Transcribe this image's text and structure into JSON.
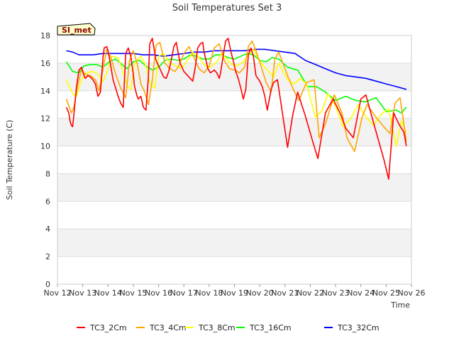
{
  "chart_data": {
    "type": "line",
    "title": "Soil Temperatures Set 3",
    "xlabel": "Time",
    "ylabel": "Soil Temperature (C)",
    "site_label": "SI_met",
    "xlim": [
      11.0,
      25.0
    ],
    "ylim": [
      0,
      18
    ],
    "x_units": "days since Nov 1 (Nov 12 = 11)",
    "x_ticks": [
      {
        "value": 11,
        "label": "Nov 12"
      },
      {
        "value": 12,
        "label": "Nov 13"
      },
      {
        "value": 13,
        "label": "Nov 14"
      },
      {
        "value": 14,
        "label": "Nov 15"
      },
      {
        "value": 15,
        "label": "Nov 16"
      },
      {
        "value": 16,
        "label": "Nov 17"
      },
      {
        "value": 17,
        "label": "Nov 18"
      },
      {
        "value": 18,
        "label": "Nov 19"
      },
      {
        "value": 19,
        "label": "Nov 20"
      },
      {
        "value": 20,
        "label": "Nov 21"
      },
      {
        "value": 21,
        "label": "Nov 22"
      },
      {
        "value": 22,
        "label": "Nov 23"
      },
      {
        "value": 23,
        "label": "Nov 24"
      },
      {
        "value": 24,
        "label": "Nov 25"
      },
      {
        "value": 25,
        "label": "Nov 26"
      }
    ],
    "y_ticks": [
      0,
      2,
      4,
      6,
      8,
      10,
      12,
      14,
      16,
      18
    ],
    "band_color": "#f2f2f2",
    "series": [
      {
        "name": "TC3_2Cm",
        "color": "#ff0000",
        "x": [
          11.35,
          11.45,
          11.5,
          11.55,
          11.6,
          11.65,
          11.75,
          11.85,
          11.95,
          12.05,
          12.1,
          12.2,
          12.3,
          12.4,
          12.5,
          12.6,
          12.7,
          12.8,
          12.85,
          12.95,
          13.0,
          13.1,
          13.2,
          13.3,
          13.4,
          13.5,
          13.6,
          13.7,
          13.8,
          13.9,
          14.0,
          14.05,
          14.15,
          14.2,
          14.3,
          14.4,
          14.5,
          14.6,
          14.65,
          14.75,
          14.9,
          15.05,
          15.2,
          15.3,
          15.4,
          15.5,
          15.6,
          15.7,
          15.75,
          15.85,
          16.0,
          16.15,
          16.25,
          16.35,
          16.45,
          16.55,
          16.65,
          16.75,
          16.8,
          16.95,
          17.05,
          17.2,
          17.3,
          17.4,
          17.45,
          17.55,
          17.65,
          17.75,
          17.85,
          17.95,
          18.05,
          18.15,
          18.25,
          18.35,
          18.45,
          18.55,
          18.65,
          18.75,
          18.85,
          19.0,
          19.1,
          19.2,
          19.3,
          19.45,
          19.55,
          19.7,
          20.1,
          20.3,
          20.5,
          20.8,
          21.1,
          21.3,
          21.6,
          21.9,
          22.2,
          22.4,
          22.7,
          23.0,
          23.2,
          23.5,
          23.9,
          24.1,
          24.3,
          24.5,
          24.7,
          24.8
        ],
        "values": [
          12.8,
          12.4,
          11.8,
          11.5,
          11.4,
          12.3,
          14.2,
          15.5,
          15.7,
          15.1,
          14.9,
          15.1,
          15.0,
          14.8,
          14.5,
          13.6,
          13.9,
          16.4,
          17.1,
          17.2,
          16.9,
          15.9,
          14.8,
          14.2,
          13.6,
          13.1,
          12.8,
          16.7,
          17.1,
          16.5,
          15.2,
          14.3,
          13.6,
          13.4,
          13.6,
          12.8,
          12.6,
          15.1,
          17.4,
          17.8,
          16.2,
          15.6,
          15.0,
          14.9,
          15.4,
          16.2,
          17.2,
          17.5,
          17.0,
          16.0,
          15.4,
          15.1,
          14.9,
          14.7,
          15.7,
          17.1,
          17.4,
          17.5,
          16.8,
          15.6,
          15.3,
          15.5,
          15.3,
          14.9,
          15.3,
          16.5,
          17.6,
          17.8,
          16.9,
          16.2,
          15.4,
          14.9,
          14.2,
          13.4,
          14.1,
          16.6,
          17.1,
          16.5,
          15.1,
          14.7,
          14.3,
          13.6,
          12.6,
          14.1,
          14.6,
          14.8,
          9.9,
          12.2,
          13.9,
          12.2,
          10.3,
          9.1,
          12.4,
          13.4,
          12.3,
          11.3,
          10.6,
          13.4,
          13.7,
          11.7,
          9.1,
          7.6,
          12.4,
          11.6,
          11.0,
          10.0
        ]
      },
      {
        "name": "TC3_4Cm",
        "color": "#ffa500",
        "x": [
          11.35,
          11.45,
          11.55,
          11.65,
          11.8,
          11.95,
          12.1,
          12.3,
          12.5,
          12.65,
          12.8,
          12.95,
          13.1,
          13.3,
          13.5,
          13.7,
          13.85,
          14.0,
          14.15,
          14.3,
          14.45,
          14.6,
          14.75,
          14.9,
          15.05,
          15.25,
          15.45,
          15.65,
          15.8,
          16.0,
          16.2,
          16.4,
          16.6,
          16.8,
          17.0,
          17.2,
          17.4,
          17.6,
          17.8,
          18.0,
          18.2,
          18.4,
          18.55,
          18.7,
          18.85,
          19.05,
          19.25,
          19.45,
          19.6,
          19.75,
          20.1,
          20.35,
          20.55,
          20.85,
          21.15,
          21.35,
          21.6,
          21.95,
          22.25,
          22.45,
          22.75,
          23.05,
          23.25,
          23.55,
          23.95,
          24.15,
          24.35,
          24.55,
          24.8
        ],
        "values": [
          13.4,
          12.9,
          12.4,
          12.8,
          14.4,
          15.5,
          15.2,
          15.1,
          14.8,
          14.0,
          15.6,
          17.0,
          16.5,
          15.2,
          14.2,
          13.5,
          16.2,
          16.9,
          16.0,
          14.5,
          13.9,
          13.0,
          14.8,
          17.3,
          17.5,
          16.0,
          15.6,
          15.4,
          15.8,
          16.7,
          17.2,
          16.4,
          15.6,
          15.3,
          15.8,
          17.1,
          17.4,
          16.2,
          15.6,
          15.5,
          15.3,
          15.7,
          17.2,
          17.6,
          16.9,
          15.8,
          14.6,
          13.9,
          16.3,
          16.8,
          15.1,
          14.0,
          13.3,
          14.6,
          14.8,
          10.6,
          11.6,
          13.7,
          12.4,
          10.6,
          9.6,
          12.1,
          13.0,
          12.2,
          11.3,
          10.9,
          13.1,
          13.5,
          10.3
        ]
      },
      {
        "name": "TC3_8Cm",
        "color": "#ffff00",
        "x": [
          11.35,
          11.6,
          11.75,
          11.95,
          12.15,
          12.4,
          12.6,
          12.8,
          12.95,
          13.15,
          13.4,
          13.6,
          13.75,
          13.9,
          14.05,
          14.3,
          14.5,
          14.65,
          14.85,
          15.0,
          15.2,
          15.45,
          15.7,
          15.9,
          16.1,
          16.35,
          16.6,
          16.85,
          17.05,
          17.3,
          17.5,
          17.7,
          17.9,
          18.1,
          18.35,
          18.55,
          18.75,
          18.95,
          19.15,
          19.35,
          19.55,
          19.75,
          20.1,
          20.35,
          20.6,
          20.85,
          21.2,
          21.45,
          21.7,
          22.0,
          22.3,
          22.6,
          22.9,
          23.2,
          23.5,
          23.8,
          24.1,
          24.4,
          24.6,
          24.8
        ],
        "values": [
          14.8,
          13.8,
          13.6,
          14.8,
          15.3,
          15.4,
          15.2,
          14.7,
          15.3,
          16.5,
          16.4,
          15.3,
          14.4,
          14.1,
          16.0,
          16.5,
          15.8,
          14.6,
          14.2,
          16.5,
          16.7,
          16.0,
          15.8,
          15.6,
          16.1,
          16.8,
          16.4,
          15.8,
          15.7,
          16.1,
          16.7,
          16.3,
          15.9,
          15.8,
          16.1,
          16.6,
          17.0,
          16.3,
          15.8,
          15.4,
          15.0,
          16.0,
          14.8,
          14.5,
          14.9,
          14.5,
          12.1,
          12.5,
          13.8,
          12.9,
          11.4,
          12.0,
          13.0,
          12.1,
          11.5,
          12.3,
          12.7,
          10.0,
          11.8,
          11.0
        ]
      },
      {
        "name": "TC3_16Cm",
        "color": "#00ff00",
        "x": [
          11.35,
          11.6,
          11.85,
          12.05,
          12.3,
          12.55,
          12.8,
          13.05,
          13.3,
          13.55,
          13.75,
          14.0,
          14.25,
          14.5,
          14.75,
          15.0,
          15.25,
          15.5,
          15.75,
          16.0,
          16.25,
          16.5,
          16.75,
          17.0,
          17.25,
          17.5,
          17.75,
          18.0,
          18.25,
          18.5,
          18.75,
          19.0,
          19.25,
          19.5,
          19.75,
          20.1,
          20.5,
          20.9,
          21.25,
          21.6,
          22.0,
          22.4,
          22.8,
          23.2,
          23.6,
          24.0,
          24.4,
          24.6,
          24.8
        ],
        "values": [
          16.1,
          15.4,
          15.3,
          15.8,
          15.9,
          15.9,
          15.7,
          16.1,
          16.3,
          15.9,
          15.6,
          16.1,
          16.2,
          15.8,
          15.5,
          15.7,
          16.2,
          16.3,
          16.2,
          16.3,
          16.6,
          16.5,
          16.3,
          16.3,
          16.6,
          16.6,
          16.4,
          16.3,
          16.5,
          16.7,
          16.6,
          16.2,
          16.1,
          16.4,
          16.3,
          15.7,
          15.5,
          14.3,
          14.3,
          13.9,
          13.3,
          13.6,
          13.3,
          13.2,
          13.5,
          12.5,
          12.6,
          12.4,
          12.8
        ]
      },
      {
        "name": "TC3_32Cm",
        "color": "#0000ff",
        "x": [
          11.35,
          11.6,
          11.85,
          12.1,
          12.4,
          12.8,
          13.2,
          13.6,
          14.0,
          14.4,
          14.8,
          15.2,
          15.6,
          16.0,
          16.4,
          16.8,
          17.2,
          17.6,
          18.0,
          18.4,
          18.8,
          19.2,
          19.6,
          20.0,
          20.4,
          20.8,
          21.2,
          21.6,
          22.0,
          22.4,
          22.8,
          23.2,
          23.6,
          24.0,
          24.4,
          24.8
        ],
        "values": [
          16.9,
          16.8,
          16.6,
          16.6,
          16.6,
          16.7,
          16.7,
          16.7,
          16.7,
          16.6,
          16.6,
          16.5,
          16.6,
          16.7,
          16.8,
          16.8,
          16.9,
          16.9,
          16.9,
          16.9,
          17.0,
          17.0,
          16.9,
          16.8,
          16.7,
          16.2,
          15.9,
          15.6,
          15.3,
          15.1,
          15.0,
          14.9,
          14.7,
          14.5,
          14.3,
          14.1
        ]
      }
    ],
    "legend_placement": "bottom-center"
  }
}
